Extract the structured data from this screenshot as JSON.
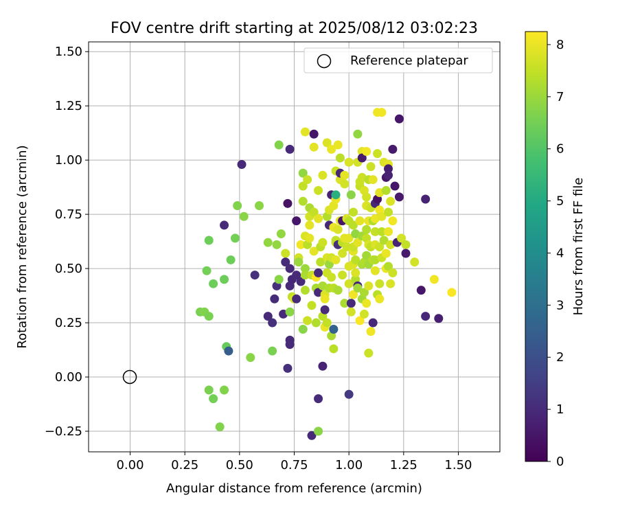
{
  "chart_data": {
    "type": "scatter",
    "title": "FOV centre drift starting at 2025/08/12 03:02:23",
    "xlabel": "Angular distance from reference (arcmin)",
    "ylabel": "Rotation from reference (arcmin)",
    "xlim": [
      -0.19,
      1.69
    ],
    "ylim": [
      -0.345,
      1.545
    ],
    "xticks": [
      0.0,
      0.25,
      0.5,
      0.75,
      1.0,
      1.25,
      1.5
    ],
    "xtick_labels": [
      "0.00",
      "0.25",
      "0.50",
      "0.75",
      "1.00",
      "1.25",
      "1.50"
    ],
    "yticks": [
      -0.25,
      0.0,
      0.25,
      0.5,
      0.75,
      1.0,
      1.25,
      1.5
    ],
    "ytick_labels": [
      "−0.25",
      "0.00",
      "0.25",
      "0.50",
      "0.75",
      "1.00",
      "1.25",
      "1.50"
    ],
    "grid": true,
    "legend": {
      "placement": "upper right",
      "entries": [
        "Reference platepar"
      ]
    },
    "reference_point": {
      "x": 0.0,
      "y": 0.0,
      "label": "Reference platepar",
      "marker": "open-circle"
    },
    "colorbar": {
      "label": "Hours from first FF file",
      "colormap": "viridis",
      "range": [
        0,
        8.25
      ],
      "ticks": [
        0,
        1,
        2,
        3,
        4,
        5,
        6,
        7,
        8
      ],
      "tick_labels": [
        "0",
        "1",
        "2",
        "3",
        "4",
        "5",
        "6",
        "7",
        "8"
      ]
    },
    "points": [
      {
        "x": 0.32,
        "y": 0.3,
        "c": 6.6
      },
      {
        "x": 0.34,
        "y": 0.3,
        "c": 6.7
      },
      {
        "x": 0.36,
        "y": 0.28,
        "c": 6.6
      },
      {
        "x": 0.35,
        "y": 0.49,
        "c": 6.5
      },
      {
        "x": 0.36,
        "y": 0.63,
        "c": 6.4
      },
      {
        "x": 0.38,
        "y": 0.43,
        "c": 6.4
      },
      {
        "x": 0.36,
        "y": -0.06,
        "c": 6.6
      },
      {
        "x": 0.38,
        "y": -0.1,
        "c": 6.5
      },
      {
        "x": 0.41,
        "y": -0.23,
        "c": 6.7
      },
      {
        "x": 0.43,
        "y": -0.06,
        "c": 6.7
      },
      {
        "x": 0.43,
        "y": 0.45,
        "c": 6.4
      },
      {
        "x": 0.43,
        "y": 0.7,
        "c": 1.0
      },
      {
        "x": 0.44,
        "y": 0.14,
        "c": 6.3
      },
      {
        "x": 0.45,
        "y": 0.12,
        "c": 2.4
      },
      {
        "x": 0.46,
        "y": 0.54,
        "c": 6.4
      },
      {
        "x": 0.48,
        "y": 0.64,
        "c": 6.5
      },
      {
        "x": 0.49,
        "y": 0.79,
        "c": 6.7
      },
      {
        "x": 0.51,
        "y": 0.98,
        "c": 1.0
      },
      {
        "x": 0.52,
        "y": 0.74,
        "c": 6.8
      },
      {
        "x": 0.55,
        "y": 0.09,
        "c": 6.8
      },
      {
        "x": 0.57,
        "y": 0.47,
        "c": 1.1
      },
      {
        "x": 0.59,
        "y": 0.79,
        "c": 6.8
      },
      {
        "x": 0.63,
        "y": 0.62,
        "c": 6.9
      },
      {
        "x": 0.63,
        "y": 0.28,
        "c": 1.0
      },
      {
        "x": 0.65,
        "y": 0.25,
        "c": 1.1
      },
      {
        "x": 0.65,
        "y": 0.12,
        "c": 6.6
      },
      {
        "x": 0.66,
        "y": 0.36,
        "c": 1.0
      },
      {
        "x": 0.67,
        "y": 0.61,
        "c": 6.9
      },
      {
        "x": 0.67,
        "y": 0.42,
        "c": 1.1
      },
      {
        "x": 0.68,
        "y": 1.07,
        "c": 6.7
      },
      {
        "x": 0.68,
        "y": 0.45,
        "c": 6.8
      },
      {
        "x": 0.69,
        "y": 0.66,
        "c": 6.9
      },
      {
        "x": 0.7,
        "y": 0.29,
        "c": 1.0
      },
      {
        "x": 0.71,
        "y": 0.57,
        "c": 7.6
      },
      {
        "x": 0.71,
        "y": 0.53,
        "c": 1.0
      },
      {
        "x": 0.72,
        "y": 0.04,
        "c": 1.1
      },
      {
        "x": 0.72,
        "y": 0.8,
        "c": 0.4
      },
      {
        "x": 0.73,
        "y": 1.05,
        "c": 1.0
      },
      {
        "x": 0.73,
        "y": 0.5,
        "c": 1.0
      },
      {
        "x": 0.73,
        "y": 0.42,
        "c": 1.0
      },
      {
        "x": 0.73,
        "y": 0.3,
        "c": 6.8
      },
      {
        "x": 0.73,
        "y": 0.17,
        "c": 1.0
      },
      {
        "x": 0.73,
        "y": 0.15,
        "c": 1.0
      },
      {
        "x": 0.74,
        "y": 0.45,
        "c": 0.9
      },
      {
        "x": 0.74,
        "y": 0.37,
        "c": 7.5
      },
      {
        "x": 0.75,
        "y": 0.36,
        "c": 7.8
      },
      {
        "x": 0.76,
        "y": 0.72,
        "c": 0.5
      },
      {
        "x": 0.76,
        "y": 0.36,
        "c": 1.0
      },
      {
        "x": 0.76,
        "y": 0.47,
        "c": 1.0
      },
      {
        "x": 0.77,
        "y": 0.55,
        "c": 7.7
      },
      {
        "x": 0.77,
        "y": 0.53,
        "c": 7.0
      },
      {
        "x": 0.78,
        "y": 0.61,
        "c": 8.1
      },
      {
        "x": 0.78,
        "y": 0.44,
        "c": 1.0
      },
      {
        "x": 0.79,
        "y": 0.22,
        "c": 6.8
      },
      {
        "x": 0.79,
        "y": 0.94,
        "c": 6.9
      },
      {
        "x": 0.79,
        "y": 0.88,
        "c": 7.5
      },
      {
        "x": 0.79,
        "y": 0.81,
        "c": 7.3
      },
      {
        "x": 0.8,
        "y": 0.65,
        "c": 7.8
      },
      {
        "x": 0.8,
        "y": 0.5,
        "c": 7.0
      },
      {
        "x": 0.8,
        "y": 0.47,
        "c": 7.2
      },
      {
        "x": 0.8,
        "y": 0.4,
        "c": 7.3
      },
      {
        "x": 0.8,
        "y": 1.13,
        "c": 7.9
      },
      {
        "x": 0.81,
        "y": 0.91,
        "c": 7.6
      },
      {
        "x": 0.81,
        "y": 0.61,
        "c": 7.4
      },
      {
        "x": 0.81,
        "y": 0.26,
        "c": 7.6
      },
      {
        "x": 0.82,
        "y": 0.78,
        "c": 7.2
      },
      {
        "x": 0.82,
        "y": 0.7,
        "c": 7.9
      },
      {
        "x": 0.82,
        "y": 0.64,
        "c": 7.9
      },
      {
        "x": 0.82,
        "y": 0.74,
        "c": 7.7
      },
      {
        "x": 0.83,
        "y": 0.47,
        "c": 7.5
      },
      {
        "x": 0.83,
        "y": 0.33,
        "c": 7.5
      },
      {
        "x": 0.83,
        "y": -0.27,
        "c": 1.0
      },
      {
        "x": 0.84,
        "y": 0.58,
        "c": 7.9
      },
      {
        "x": 0.84,
        "y": 0.76,
        "c": 7.5
      },
      {
        "x": 0.84,
        "y": 1.12,
        "c": 0.5
      },
      {
        "x": 0.84,
        "y": 1.06,
        "c": 7.9
      },
      {
        "x": 0.85,
        "y": 0.41,
        "c": 7.2
      },
      {
        "x": 0.85,
        "y": 0.46,
        "c": 8.2
      },
      {
        "x": 0.85,
        "y": 0.25,
        "c": 7.3
      },
      {
        "x": 0.86,
        "y": 0.86,
        "c": 7.6
      },
      {
        "x": 0.86,
        "y": 0.73,
        "c": 7.9
      },
      {
        "x": 0.86,
        "y": 0.48,
        "c": 1.0
      },
      {
        "x": 0.86,
        "y": 0.39,
        "c": 1.0
      },
      {
        "x": 0.86,
        "y": -0.1,
        "c": 1.0
      },
      {
        "x": 0.86,
        "y": -0.25,
        "c": 6.8
      },
      {
        "x": 0.87,
        "y": 0.6,
        "c": 7.4
      },
      {
        "x": 0.87,
        "y": 0.53,
        "c": 7.4
      },
      {
        "x": 0.88,
        "y": 0.93,
        "c": 7.8
      },
      {
        "x": 0.88,
        "y": 0.42,
        "c": 7.2
      },
      {
        "x": 0.88,
        "y": 0.62,
        "c": 7.6
      },
      {
        "x": 0.88,
        "y": 0.28,
        "c": 7.4
      },
      {
        "x": 0.88,
        "y": 0.05,
        "c": 0.8
      },
      {
        "x": 0.89,
        "y": 0.38,
        "c": 7.8
      },
      {
        "x": 0.89,
        "y": 0.31,
        "c": 1.0
      },
      {
        "x": 0.89,
        "y": 0.23,
        "c": 8.0
      },
      {
        "x": 0.89,
        "y": 0.36,
        "c": 8.0
      },
      {
        "x": 0.9,
        "y": 0.48,
        "c": 7.6
      },
      {
        "x": 0.9,
        "y": 0.74,
        "c": 7.3
      },
      {
        "x": 0.9,
        "y": 0.55,
        "c": 7.8
      },
      {
        "x": 0.9,
        "y": 1.08,
        "c": 7.8
      },
      {
        "x": 0.9,
        "y": 0.25,
        "c": 7.5
      },
      {
        "x": 0.91,
        "y": 0.52,
        "c": 7.0
      },
      {
        "x": 0.91,
        "y": 0.41,
        "c": 7.3
      },
      {
        "x": 0.91,
        "y": 0.7,
        "c": 0.9
      },
      {
        "x": 0.91,
        "y": 0.77,
        "c": 7.8
      },
      {
        "x": 0.92,
        "y": 0.84,
        "c": 0.8
      },
      {
        "x": 0.92,
        "y": 0.19,
        "c": 7.2
      },
      {
        "x": 0.92,
        "y": 0.55,
        "c": 7.7
      },
      {
        "x": 0.92,
        "y": 0.46,
        "c": 7.6
      },
      {
        "x": 0.92,
        "y": 1.05,
        "c": 8.0
      },
      {
        "x": 0.93,
        "y": 0.79,
        "c": 7.9
      },
      {
        "x": 0.93,
        "y": 0.69,
        "c": 8.0
      },
      {
        "x": 0.93,
        "y": 0.13,
        "c": 7.4
      },
      {
        "x": 0.93,
        "y": 0.41,
        "c": 7.4
      },
      {
        "x": 0.93,
        "y": 0.22,
        "c": 2.6
      },
      {
        "x": 0.94,
        "y": 0.54,
        "c": 7.9
      },
      {
        "x": 0.94,
        "y": 0.82,
        "c": 8.0
      },
      {
        "x": 0.94,
        "y": 0.62,
        "c": 7.6
      },
      {
        "x": 0.94,
        "y": 0.84,
        "c": 5.2
      },
      {
        "x": 0.94,
        "y": 0.63,
        "c": 7.5
      },
      {
        "x": 0.94,
        "y": 0.95,
        "c": 7.6
      },
      {
        "x": 0.95,
        "y": 1.07,
        "c": 8.0
      },
      {
        "x": 0.95,
        "y": 0.4,
        "c": 7.2
      },
      {
        "x": 0.95,
        "y": 0.68,
        "c": 7.8
      },
      {
        "x": 0.95,
        "y": 0.61,
        "c": 1.1
      },
      {
        "x": 0.96,
        "y": 0.72,
        "c": 7.9
      },
      {
        "x": 0.96,
        "y": 0.91,
        "c": 7.8
      },
      {
        "x": 0.96,
        "y": 0.94,
        "c": 0.9
      },
      {
        "x": 0.96,
        "y": 1.01,
        "c": 7.4
      },
      {
        "x": 0.97,
        "y": 0.72,
        "c": 0.5
      },
      {
        "x": 0.97,
        "y": 0.47,
        "c": 7.6
      },
      {
        "x": 0.97,
        "y": 0.57,
        "c": 7.7
      },
      {
        "x": 0.97,
        "y": 0.62,
        "c": 7.4
      },
      {
        "x": 0.98,
        "y": 0.93,
        "c": 7.9
      },
      {
        "x": 0.98,
        "y": 0.34,
        "c": 7.2
      },
      {
        "x": 0.98,
        "y": 0.89,
        "c": 7.7
      },
      {
        "x": 0.98,
        "y": 0.64,
        "c": 7.9
      },
      {
        "x": 0.99,
        "y": 0.73,
        "c": 7.8
      },
      {
        "x": 0.99,
        "y": 0.6,
        "c": 7.6
      },
      {
        "x": 1.0,
        "y": 0.64,
        "c": 7.9
      },
      {
        "x": 1.0,
        "y": 0.99,
        "c": 7.8
      },
      {
        "x": 1.0,
        "y": 0.72,
        "c": 7.4
      },
      {
        "x": 1.0,
        "y": 0.51,
        "c": 7.8
      },
      {
        "x": 1.0,
        "y": 0.43,
        "c": 7.7
      },
      {
        "x": 1.0,
        "y": -0.08,
        "c": 1.4
      },
      {
        "x": 1.01,
        "y": 0.34,
        "c": 1.0
      },
      {
        "x": 1.01,
        "y": 0.3,
        "c": 7.7
      },
      {
        "x": 1.01,
        "y": 0.84,
        "c": 6.8
      },
      {
        "x": 1.02,
        "y": 0.7,
        "c": 7.4
      },
      {
        "x": 1.02,
        "y": 0.58,
        "c": 7.9
      },
      {
        "x": 1.02,
        "y": 0.6,
        "c": 7.6
      },
      {
        "x": 1.02,
        "y": 0.38,
        "c": 8.1
      },
      {
        "x": 1.02,
        "y": 0.52,
        "c": 7.8
      },
      {
        "x": 1.02,
        "y": 0.76,
        "c": 7.5
      },
      {
        "x": 1.03,
        "y": 0.66,
        "c": 6.9
      },
      {
        "x": 1.03,
        "y": 0.45,
        "c": 7.3
      },
      {
        "x": 1.03,
        "y": 0.48,
        "c": 7.8
      },
      {
        "x": 1.03,
        "y": 0.54,
        "c": 7.4
      },
      {
        "x": 1.04,
        "y": 0.62,
        "c": 7.9
      },
      {
        "x": 1.04,
        "y": 1.12,
        "c": 6.9
      },
      {
        "x": 1.04,
        "y": 0.99,
        "c": 7.7
      },
      {
        "x": 1.04,
        "y": 0.42,
        "c": 0.9
      },
      {
        "x": 1.04,
        "y": 0.41,
        "c": 7.1
      },
      {
        "x": 1.05,
        "y": 0.26,
        "c": 8.2
      },
      {
        "x": 1.05,
        "y": 0.88,
        "c": 7.5
      },
      {
        "x": 1.05,
        "y": 0.72,
        "c": 7.9
      },
      {
        "x": 1.05,
        "y": 0.9,
        "c": 7.6
      },
      {
        "x": 1.06,
        "y": 0.65,
        "c": 7.1
      },
      {
        "x": 1.06,
        "y": 0.52,
        "c": 7.2
      },
      {
        "x": 1.06,
        "y": 0.36,
        "c": 7.1
      },
      {
        "x": 1.06,
        "y": 1.04,
        "c": 7.9
      },
      {
        "x": 1.06,
        "y": 1.01,
        "c": 0.6
      },
      {
        "x": 1.06,
        "y": 0.92,
        "c": 7.6
      },
      {
        "x": 1.07,
        "y": 0.86,
        "c": 7.8
      },
      {
        "x": 1.07,
        "y": 0.53,
        "c": 7.3
      },
      {
        "x": 1.07,
        "y": 0.39,
        "c": 7.2
      },
      {
        "x": 1.07,
        "y": 0.29,
        "c": 7.7
      },
      {
        "x": 1.08,
        "y": 0.79,
        "c": 7.8
      },
      {
        "x": 1.08,
        "y": 0.56,
        "c": 7.1
      },
      {
        "x": 1.08,
        "y": 0.83,
        "c": 7.7
      },
      {
        "x": 1.08,
        "y": 0.64,
        "c": 7.5
      },
      {
        "x": 1.08,
        "y": 0.68,
        "c": 7.3
      },
      {
        "x": 1.08,
        "y": 1.04,
        "c": 8.1
      },
      {
        "x": 1.08,
        "y": 0.34,
        "c": 8.0
      },
      {
        "x": 1.09,
        "y": 0.61,
        "c": 7.8
      },
      {
        "x": 1.09,
        "y": 0.42,
        "c": 7.8
      },
      {
        "x": 1.09,
        "y": 0.91,
        "c": 7.4
      },
      {
        "x": 1.09,
        "y": 0.52,
        "c": 7.1
      },
      {
        "x": 1.09,
        "y": 0.11,
        "c": 7.6
      },
      {
        "x": 1.09,
        "y": 0.72,
        "c": 8.0
      },
      {
        "x": 1.1,
        "y": 0.97,
        "c": 7.6
      },
      {
        "x": 1.1,
        "y": 0.78,
        "c": 7.6
      },
      {
        "x": 1.1,
        "y": 0.6,
        "c": 7.5
      },
      {
        "x": 1.1,
        "y": 0.21,
        "c": 8.1
      },
      {
        "x": 1.11,
        "y": 0.25,
        "c": 0.9
      },
      {
        "x": 1.11,
        "y": 0.54,
        "c": 7.4
      },
      {
        "x": 1.11,
        "y": 0.72,
        "c": 7.3
      },
      {
        "x": 1.11,
        "y": 0.91,
        "c": 7.9
      },
      {
        "x": 1.12,
        "y": 0.73,
        "c": 8.0
      },
      {
        "x": 1.12,
        "y": 0.61,
        "c": 7.8
      },
      {
        "x": 1.12,
        "y": 0.67,
        "c": 7.5
      },
      {
        "x": 1.12,
        "y": 0.49,
        "c": 7.9
      },
      {
        "x": 1.12,
        "y": 0.8,
        "c": 0.9
      },
      {
        "x": 1.12,
        "y": 0.54,
        "c": 7.3
      },
      {
        "x": 1.13,
        "y": 1.03,
        "c": 7.6
      },
      {
        "x": 1.13,
        "y": 0.82,
        "c": 0.4
      },
      {
        "x": 1.13,
        "y": 0.38,
        "c": 7.4
      },
      {
        "x": 1.13,
        "y": 1.22,
        "c": 8.1
      },
      {
        "x": 1.14,
        "y": 0.36,
        "c": 8.0
      },
      {
        "x": 1.14,
        "y": 0.6,
        "c": 7.6
      },
      {
        "x": 1.14,
        "y": 0.43,
        "c": 7.6
      },
      {
        "x": 1.14,
        "y": 0.77,
        "c": 8.1
      },
      {
        "x": 1.14,
        "y": 0.85,
        "c": 7.9
      },
      {
        "x": 1.15,
        "y": 0.55,
        "c": 7.6
      },
      {
        "x": 1.15,
        "y": 1.22,
        "c": 8.1
      },
      {
        "x": 1.15,
        "y": 0.74,
        "c": 7.9
      },
      {
        "x": 1.15,
        "y": 0.67,
        "c": 7.4
      },
      {
        "x": 1.16,
        "y": 0.63,
        "c": 7.3
      },
      {
        "x": 1.16,
        "y": 0.99,
        "c": 7.8
      },
      {
        "x": 1.17,
        "y": 0.5,
        "c": 8.0
      },
      {
        "x": 1.17,
        "y": 0.57,
        "c": 8.0
      },
      {
        "x": 1.17,
        "y": 0.92,
        "c": 0.5
      },
      {
        "x": 1.17,
        "y": 0.86,
        "c": 7.3
      },
      {
        "x": 1.18,
        "y": 0.76,
        "c": 7.5
      },
      {
        "x": 1.18,
        "y": 0.51,
        "c": 7.3
      },
      {
        "x": 1.18,
        "y": 0.98,
        "c": 7.9
      },
      {
        "x": 1.18,
        "y": 0.67,
        "c": 8.0
      },
      {
        "x": 1.18,
        "y": 0.96,
        "c": 0.7
      },
      {
        "x": 1.18,
        "y": 0.93,
        "c": 0.8
      },
      {
        "x": 1.19,
        "y": 0.43,
        "c": 7.8
      },
      {
        "x": 1.19,
        "y": 0.81,
        "c": 7.8
      },
      {
        "x": 1.19,
        "y": 0.61,
        "c": 7.7
      },
      {
        "x": 1.2,
        "y": 0.48,
        "c": 7.6
      },
      {
        "x": 1.2,
        "y": 0.72,
        "c": 8.1
      },
      {
        "x": 1.2,
        "y": 1.05,
        "c": 0.6
      },
      {
        "x": 1.21,
        "y": 0.88,
        "c": 0.5
      },
      {
        "x": 1.22,
        "y": 0.62,
        "c": 0.8
      },
      {
        "x": 1.23,
        "y": 0.83,
        "c": 0.6
      },
      {
        "x": 1.23,
        "y": 1.19,
        "c": 0.5
      },
      {
        "x": 1.24,
        "y": 0.64,
        "c": 7.7
      },
      {
        "x": 1.26,
        "y": 0.61,
        "c": 7.5
      },
      {
        "x": 1.26,
        "y": 0.57,
        "c": 0.6
      },
      {
        "x": 1.3,
        "y": 0.53,
        "c": 7.7
      },
      {
        "x": 1.33,
        "y": 0.4,
        "c": 0.5
      },
      {
        "x": 1.35,
        "y": 0.28,
        "c": 0.9
      },
      {
        "x": 1.35,
        "y": 0.82,
        "c": 0.8
      },
      {
        "x": 1.39,
        "y": 0.45,
        "c": 8.1
      },
      {
        "x": 1.41,
        "y": 0.27,
        "c": 0.7
      },
      {
        "x": 1.47,
        "y": 0.39,
        "c": 8.2
      }
    ]
  }
}
